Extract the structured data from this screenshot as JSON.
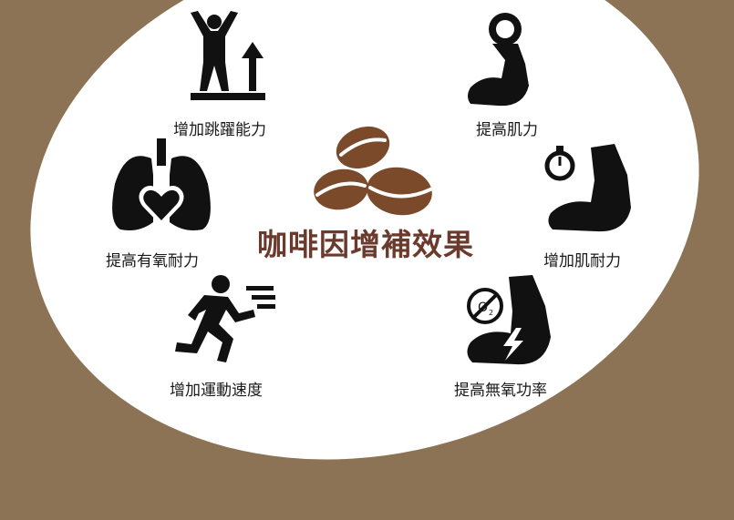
{
  "title": "咖啡因增補效果",
  "effects": [
    {
      "label": "增加跳躍能力",
      "icon": "jumping-person-icon"
    },
    {
      "label": "提高肌力",
      "icon": "flexed-arm-weight-icon"
    },
    {
      "label": "提高有氧耐力",
      "icon": "lungs-heart-icon"
    },
    {
      "label": "增加肌耐力",
      "icon": "flexed-arm-stopwatch-icon"
    },
    {
      "label": "增加運動速度",
      "icon": "running-person-icon"
    },
    {
      "label": "提高無氧功率",
      "icon": "flexed-arm-no-oxygen-icon"
    }
  ],
  "colors": {
    "background": "#8c7355",
    "title": "#6a3a2c",
    "beans": "#7a4a2a"
  }
}
